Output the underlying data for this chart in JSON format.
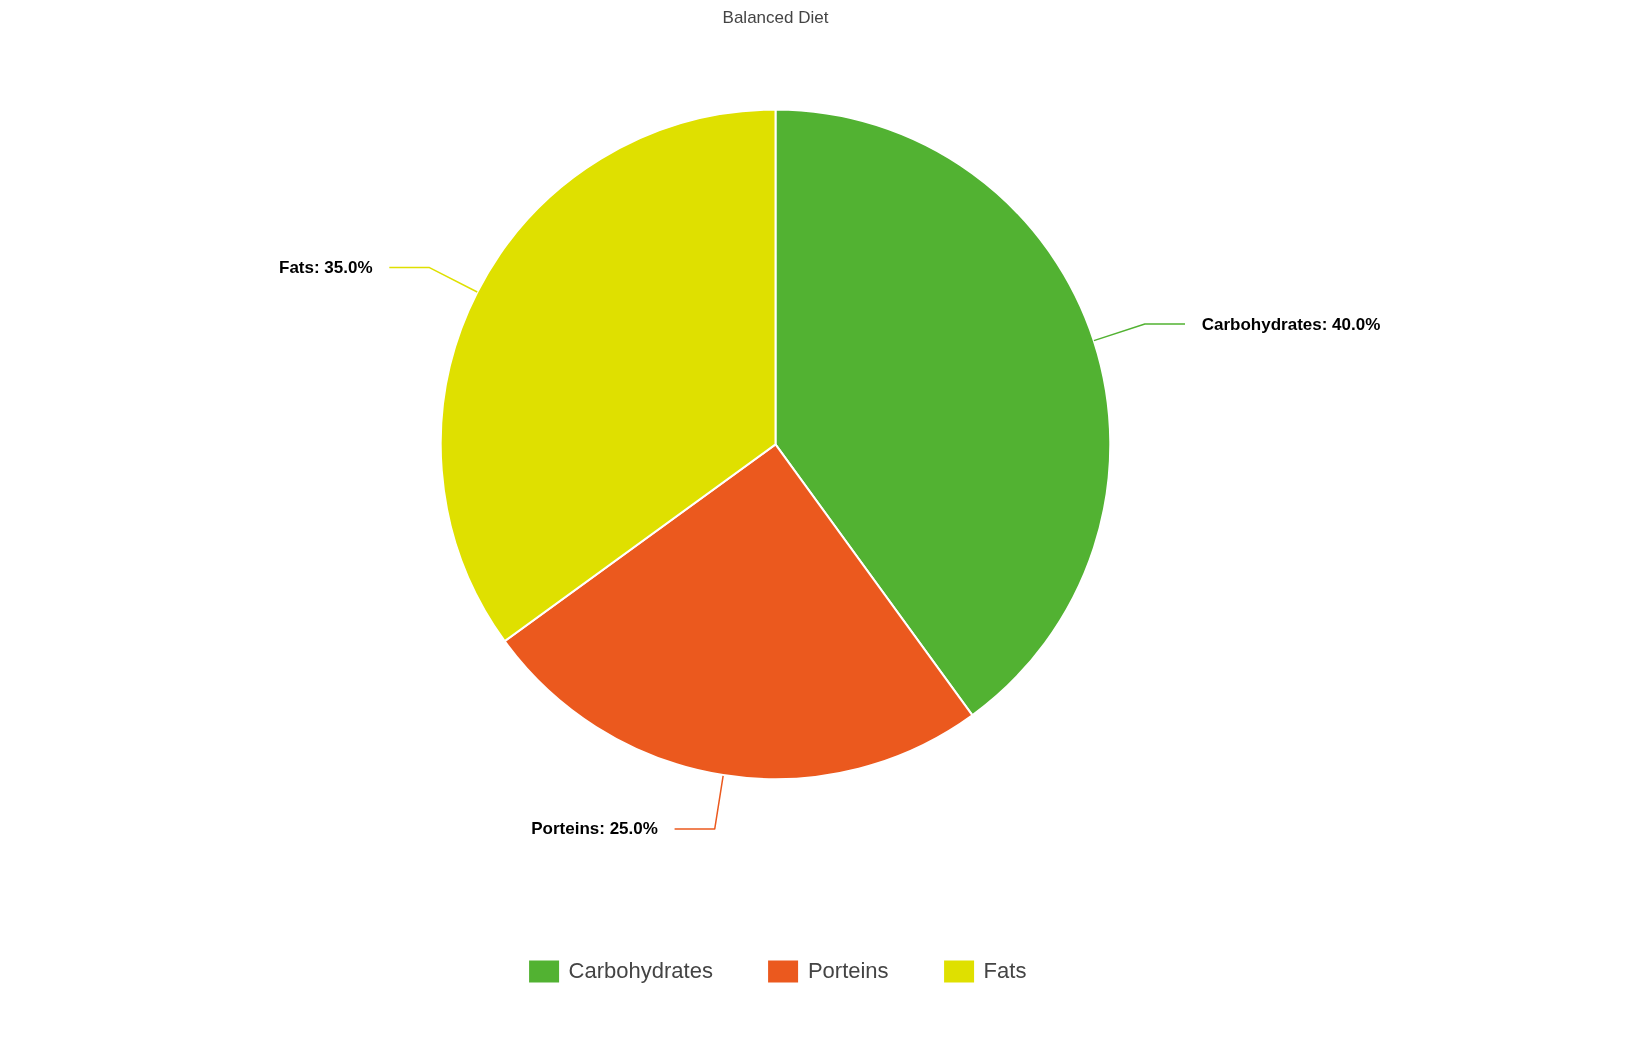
{
  "chart_data": {
    "type": "pie",
    "title": "Balanced Diet",
    "categories": [
      "Carbohydrates",
      "Porteins",
      "Fats"
    ],
    "values": [
      40,
      25,
      35
    ],
    "colors": [
      "#52b232",
      "#eb591e",
      "#dfe000"
    ],
    "value_labels": [
      "Carbohydrates: 40.0%",
      "Porteins: 25.0%",
      "Fats: 35.0%"
    ],
    "legend": "bottom"
  }
}
